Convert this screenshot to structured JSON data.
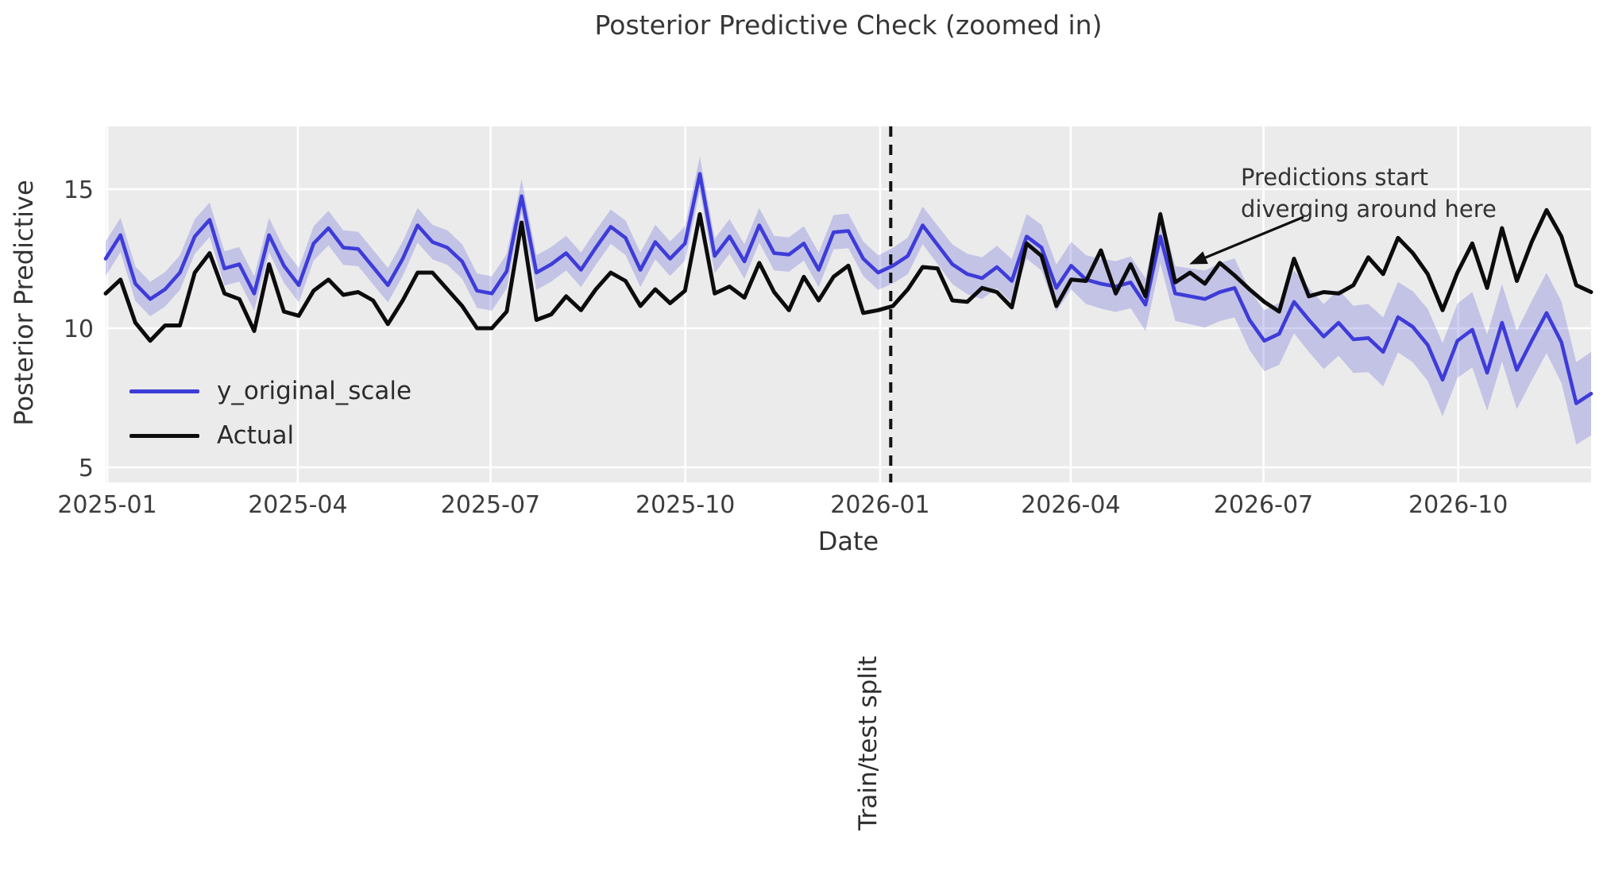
{
  "title": "Posterior Predictive Check (zoomed in)",
  "axes": {
    "xlabel": "Date",
    "ylabel": "Posterior Predictive",
    "y_ticks": [
      {
        "label": "5",
        "value": 5
      },
      {
        "label": "10",
        "value": 10
      },
      {
        "label": "15",
        "value": 15
      }
    ],
    "x_ticks": [
      {
        "label": "2025-01",
        "day": 0
      },
      {
        "label": "2025-04",
        "day": 90
      },
      {
        "label": "2025-07",
        "day": 181
      },
      {
        "label": "2025-10",
        "day": 273
      },
      {
        "label": "2026-01",
        "day": 365
      },
      {
        "label": "2026-04",
        "day": 455
      },
      {
        "label": "2026-07",
        "day": 546
      },
      {
        "label": "2026-10",
        "day": 638
      }
    ],
    "ylim": [
      4.46,
      17.26
    ]
  },
  "colors": {
    "plot_bg": "#ebebeb",
    "grid": "#ffffff",
    "blue_line": "#3e3cd8",
    "band_fill": "rgba(92,92,219,0.28)",
    "black_line": "#0c0c0c",
    "split_line": "#111111"
  },
  "legend": [
    {
      "label": "y_original_scale",
      "color": "#3e3cd8"
    },
    {
      "label": "Actual",
      "color": "#0c0c0c"
    }
  ],
  "split": {
    "label": "Train/test split",
    "day": 370
  },
  "annotation": {
    "lines": [
      "Predictions start",
      "diverging around here"
    ],
    "arrow": {
      "tip_day": 511,
      "tip_value": 12.3,
      "tail_day": 565,
      "tail_value": 14.0
    }
  },
  "chart_data": {
    "type": "line",
    "x_start_date": "2025-01-01",
    "x_step_days": 7,
    "n_points": 101,
    "series": [
      {
        "name": "y_original_scale",
        "values": [
          12.5,
          13.35,
          11.6,
          11.05,
          11.4,
          12.0,
          13.3,
          13.9,
          12.15,
          12.3,
          11.25,
          13.35,
          12.25,
          11.55,
          13.05,
          13.6,
          12.9,
          12.85,
          12.2,
          11.55,
          12.5,
          13.7,
          13.1,
          12.9,
          12.4,
          11.35,
          11.25,
          12.05,
          14.75,
          12.0,
          12.3,
          12.7,
          12.1,
          12.9,
          13.65,
          13.25,
          12.1,
          13.1,
          12.5,
          13.05,
          15.55,
          12.6,
          13.3,
          12.4,
          13.7,
          12.7,
          12.65,
          13.05,
          12.1,
          13.45,
          13.5,
          12.5,
          12.0,
          12.25,
          12.6,
          13.7,
          13.0,
          12.3,
          11.95,
          11.8,
          12.2,
          11.7,
          13.3,
          12.9,
          11.45,
          12.25,
          11.75,
          11.6,
          11.5,
          11.65,
          10.85,
          13.3,
          11.25,
          11.15,
          11.05,
          11.3,
          11.45,
          10.3,
          9.55,
          9.8,
          10.95,
          10.3,
          9.7,
          10.2,
          9.6,
          9.65,
          9.15,
          10.4,
          10.05,
          9.4,
          8.15,
          9.55,
          9.95,
          8.4,
          10.2,
          8.5,
          9.55,
          10.55,
          9.5,
          7.3,
          7.65
        ]
      },
      {
        "name": "Actual",
        "values": [
          11.25,
          11.75,
          10.2,
          9.55,
          10.1,
          10.1,
          12.0,
          12.7,
          11.25,
          11.05,
          9.9,
          12.3,
          10.6,
          10.45,
          11.35,
          11.75,
          11.2,
          11.3,
          11.0,
          10.15,
          11.0,
          12.0,
          12.0,
          11.4,
          10.8,
          10.0,
          10.0,
          10.6,
          13.8,
          10.3,
          10.5,
          11.15,
          10.65,
          11.4,
          12.0,
          11.7,
          10.8,
          11.4,
          10.9,
          11.35,
          14.1,
          11.25,
          11.5,
          11.1,
          12.35,
          11.3,
          10.65,
          11.85,
          11.0,
          11.85,
          12.25,
          10.55,
          10.65,
          10.8,
          11.4,
          12.2,
          12.15,
          11.0,
          10.95,
          11.45,
          11.3,
          10.75,
          13.05,
          12.6,
          10.8,
          11.75,
          11.7,
          12.8,
          11.25,
          12.3,
          11.15,
          14.1,
          11.65,
          12.0,
          11.6,
          12.35,
          11.9,
          11.4,
          10.95,
          10.6,
          12.5,
          11.15,
          11.3,
          11.25,
          11.55,
          12.55,
          11.95,
          13.25,
          12.7,
          11.95,
          10.65,
          12.0,
          13.05,
          11.45,
          13.6,
          11.7,
          13.1,
          14.25,
          13.3,
          11.55,
          11.3
        ]
      }
    ],
    "band": {
      "around_series": "y_original_scale",
      "half_width_train": 0.62,
      "half_width_test_end": 1.5,
      "train_end_index": 52
    }
  }
}
